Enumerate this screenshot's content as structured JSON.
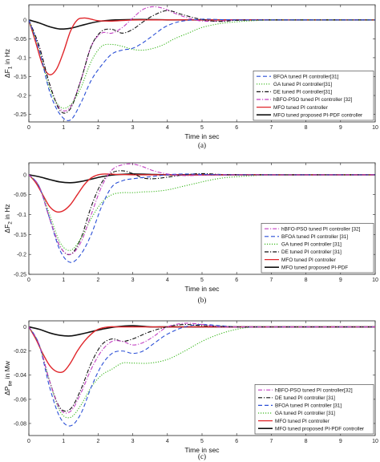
{
  "chart_data": [
    {
      "type": "line",
      "caption": "(a)",
      "xlabel": "Time in sec",
      "ylabel": "ΔF",
      "ylabel_sub": "1",
      "ylabel_suffix": " in Hz",
      "xlim": [
        0,
        10
      ],
      "ylim": [
        -0.27,
        0.04
      ],
      "xticks": [
        "0",
        "1",
        "2",
        "3",
        "4",
        "5",
        "6",
        "7",
        "8",
        "9",
        "10"
      ],
      "xtick_values": [
        0,
        1,
        2,
        3,
        4,
        5,
        6,
        7,
        8,
        9,
        10
      ],
      "yticks": [
        "0",
        "-0.05",
        "-0.1",
        "-0.15",
        "-0.2",
        "-0.25"
      ],
      "ytick_values": [
        0,
        -0.05,
        -0.1,
        -0.15,
        -0.2,
        -0.25
      ],
      "grid": false,
      "legend_position": "bottom-right",
      "series": [
        {
          "name": "BFOA tuned PI controller[31]",
          "color": "#2a4fd6",
          "dash": "dash",
          "x": [
            0,
            0.3,
            0.6,
            0.9,
            1.2,
            1.5,
            1.8,
            2.1,
            2.4,
            2.7,
            3.0,
            3.3,
            3.6,
            3.9,
            4.2,
            4.5,
            5,
            5.5,
            6,
            7,
            8,
            10
          ],
          "y": [
            0,
            -0.08,
            -0.19,
            -0.25,
            -0.265,
            -0.22,
            -0.16,
            -0.12,
            -0.09,
            -0.08,
            -0.075,
            -0.06,
            -0.04,
            -0.02,
            -0.008,
            -0.002,
            0.002,
            0.001,
            0,
            0,
            0,
            0
          ]
        },
        {
          "name": "GA tuned PI controller[31]",
          "color": "#3cb820",
          "dash": "dot",
          "x": [
            0,
            0.3,
            0.6,
            0.9,
            1.2,
            1.5,
            1.8,
            2.1,
            2.4,
            2.7,
            3.0,
            3.3,
            3.6,
            3.9,
            4.2,
            4.6,
            5.0,
            5.5,
            6,
            6.5,
            7,
            8,
            10
          ],
          "y": [
            0,
            -0.08,
            -0.18,
            -0.23,
            -0.225,
            -0.18,
            -0.11,
            -0.07,
            -0.065,
            -0.07,
            -0.078,
            -0.08,
            -0.075,
            -0.065,
            -0.05,
            -0.035,
            -0.02,
            -0.01,
            -0.005,
            -0.002,
            0,
            0,
            0
          ]
        },
        {
          "name": "DE tuned PI controller[31]",
          "color": "#111111",
          "dash": "dashdot",
          "x": [
            0,
            0.3,
            0.6,
            0.9,
            1.2,
            1.5,
            1.8,
            2.1,
            2.4,
            2.7,
            3.0,
            3.3,
            3.6,
            4.0,
            4.4,
            4.8,
            5.2,
            5.6,
            6,
            7,
            8,
            10
          ],
          "y": [
            0,
            -0.07,
            -0.17,
            -0.24,
            -0.235,
            -0.16,
            -0.07,
            -0.03,
            -0.025,
            -0.035,
            -0.025,
            -0.005,
            0.012,
            0.025,
            0.015,
            0.005,
            -0.002,
            -0.004,
            -0.001,
            0,
            0,
            0
          ]
        },
        {
          "name": "hBFO-PSO tuned PI controller [32]",
          "color": "#c23fc2",
          "dash": "dashdot",
          "x": [
            0,
            0.3,
            0.6,
            0.9,
            1.2,
            1.5,
            1.8,
            2.1,
            2.4,
            2.7,
            3.0,
            3.3,
            3.6,
            3.9,
            4.2,
            4.6,
            5.0,
            5.5,
            6,
            7,
            8,
            10
          ],
          "y": [
            0,
            -0.07,
            -0.17,
            -0.235,
            -0.23,
            -0.16,
            -0.07,
            -0.035,
            -0.035,
            -0.02,
            0.005,
            0.028,
            0.035,
            0.03,
            0.018,
            0.005,
            -0.003,
            -0.003,
            0,
            0,
            0,
            0
          ]
        },
        {
          "name": "MFO tuned PI controller",
          "color": "#e0262b",
          "dash": "solid",
          "x": [
            0,
            0.2,
            0.4,
            0.6,
            0.8,
            1.0,
            1.2,
            1.4,
            1.6,
            1.8,
            2.0,
            2.4,
            2.8,
            3.2,
            3.6,
            4,
            5,
            10
          ],
          "y": [
            0,
            -0.06,
            -0.12,
            -0.145,
            -0.13,
            -0.085,
            -0.03,
            0,
            0.005,
            0.002,
            -0.002,
            -0.003,
            -0.001,
            0,
            0,
            0,
            0,
            0
          ]
        },
        {
          "name": "MFO tuned proposed PI-PDF controller",
          "color": "#111111",
          "dash": "solid",
          "x": [
            0,
            0.3,
            0.6,
            0.9,
            1.2,
            1.5,
            1.8,
            2.1,
            2.5,
            3.0,
            3.5,
            4,
            5,
            10
          ],
          "y": [
            0,
            -0.008,
            -0.018,
            -0.024,
            -0.022,
            -0.015,
            -0.008,
            -0.003,
            0,
            0.001,
            0.001,
            0,
            0,
            0
          ]
        }
      ]
    },
    {
      "type": "line",
      "caption": "(b)",
      "xlabel": "Time in sec",
      "ylabel": "ΔF",
      "ylabel_sub": "2",
      "ylabel_suffix": " in Hz",
      "xlim": [
        0,
        10
      ],
      "ylim": [
        -0.25,
        0.03
      ],
      "xticks": [
        "0",
        "1",
        "2",
        "3",
        "4",
        "5",
        "6",
        "7",
        "8",
        "9",
        "10"
      ],
      "xtick_values": [
        0,
        1,
        2,
        3,
        4,
        5,
        6,
        7,
        8,
        9,
        10
      ],
      "yticks": [
        "0",
        "-0.05",
        "-0.1",
        "-0.15",
        "-0.2",
        "-0.25"
      ],
      "ytick_values": [
        0,
        -0.05,
        -0.1,
        -0.15,
        -0.2,
        -0.25
      ],
      "grid": false,
      "legend_position": "bottom-right",
      "series": [
        {
          "name": "hBFO-PSO tuned PI controller [32]",
          "color": "#c23fc2",
          "dash": "dashdot",
          "x": [
            0,
            0.3,
            0.6,
            0.9,
            1.2,
            1.5,
            1.8,
            2.1,
            2.4,
            2.7,
            3.0,
            3.3,
            3.6,
            4.0,
            4.5,
            5,
            5.5,
            6,
            7,
            8,
            10
          ],
          "y": [
            0,
            -0.03,
            -0.11,
            -0.18,
            -0.2,
            -0.17,
            -0.1,
            -0.03,
            0.012,
            0.025,
            0.027,
            0.02,
            0.01,
            0.002,
            -0.002,
            -0.001,
            0,
            0,
            0,
            0,
            0
          ]
        },
        {
          "name": "BFOA tuned PI controller [31]",
          "color": "#2a4fd6",
          "dash": "dash",
          "x": [
            0,
            0.3,
            0.6,
            0.9,
            1.2,
            1.5,
            1.8,
            2.1,
            2.4,
            2.7,
            3.0,
            3.5,
            4,
            4.5,
            5,
            6,
            7,
            10
          ],
          "y": [
            0,
            -0.03,
            -0.11,
            -0.19,
            -0.22,
            -0.2,
            -0.15,
            -0.08,
            -0.03,
            -0.015,
            -0.01,
            -0.005,
            0,
            0.002,
            0.001,
            0,
            0,
            0
          ]
        },
        {
          "name": "GA tuned PI controller [31]",
          "color": "#3cb820",
          "dash": "dot",
          "x": [
            0,
            0.3,
            0.6,
            0.9,
            1.2,
            1.5,
            1.8,
            2.1,
            2.4,
            2.7,
            3.0,
            3.3,
            3.6,
            4.0,
            4.4,
            4.8,
            5.2,
            5.6,
            6,
            6.5,
            7,
            8,
            10
          ],
          "y": [
            0,
            -0.03,
            -0.1,
            -0.17,
            -0.19,
            -0.16,
            -0.11,
            -0.07,
            -0.05,
            -0.045,
            -0.045,
            -0.043,
            -0.042,
            -0.038,
            -0.03,
            -0.022,
            -0.014,
            -0.008,
            -0.005,
            -0.002,
            0,
            0,
            0
          ]
        },
        {
          "name": "DE tuned PI controller [31]",
          "color": "#111111",
          "dash": "dashdot",
          "x": [
            0,
            0.3,
            0.6,
            0.9,
            1.2,
            1.5,
            1.8,
            2.1,
            2.4,
            2.7,
            3.0,
            3.3,
            3.6,
            4,
            4.5,
            5,
            5.5,
            6,
            7,
            8,
            10
          ],
          "y": [
            0,
            -0.03,
            -0.11,
            -0.18,
            -0.2,
            -0.16,
            -0.08,
            -0.02,
            0.005,
            0.01,
            0.003,
            -0.008,
            -0.01,
            -0.006,
            0,
            0.003,
            0.001,
            0,
            0,
            0,
            0
          ]
        },
        {
          "name": "MFO tuned PI controller",
          "color": "#e0262b",
          "dash": "solid",
          "x": [
            0,
            0.2,
            0.4,
            0.6,
            0.8,
            1.0,
            1.2,
            1.4,
            1.6,
            1.8,
            2.0,
            2.2,
            2.5,
            3.0,
            3.5,
            4,
            5,
            10
          ],
          "y": [
            0,
            -0.02,
            -0.05,
            -0.08,
            -0.093,
            -0.09,
            -0.075,
            -0.05,
            -0.025,
            -0.008,
            0,
            0.002,
            0.001,
            0,
            0,
            0,
            0,
            0
          ]
        },
        {
          "name": "MFO tuned proposed PI-PDF",
          "color": "#111111",
          "dash": "solid",
          "x": [
            0,
            0.3,
            0.6,
            0.9,
            1.2,
            1.5,
            1.8,
            2.1,
            2.5,
            3.0,
            3.5,
            4,
            5,
            10
          ],
          "y": [
            0,
            -0.005,
            -0.012,
            -0.018,
            -0.02,
            -0.017,
            -0.011,
            -0.005,
            0,
            0.002,
            0.001,
            0,
            0,
            0
          ]
        }
      ]
    },
    {
      "type": "line",
      "caption": "(c)",
      "xlabel": "Time in sec",
      "ylabel": "ΔP",
      "ylabel_sub": "tie",
      "ylabel_suffix": " in Mw",
      "xlim": [
        0,
        10
      ],
      "ylim": [
        -0.09,
        0.005
      ],
      "xticks": [
        "0",
        "1",
        "2",
        "3",
        "4",
        "5",
        "6",
        "7",
        "8",
        "9",
        "10"
      ],
      "xtick_values": [
        0,
        1,
        2,
        3,
        4,
        5,
        6,
        7,
        8,
        9,
        10
      ],
      "yticks": [
        "0",
        "-0.02",
        "-0.04",
        "-0.06",
        "-0.08"
      ],
      "ytick_values": [
        0,
        -0.02,
        -0.04,
        -0.06,
        -0.08
      ],
      "grid": false,
      "legend_position": "bottom-right",
      "series": [
        {
          "name": "hBFO-PSO tuned PI controller[32]",
          "color": "#c23fc2",
          "dash": "dashdot",
          "x": [
            0,
            0.3,
            0.6,
            0.9,
            1.2,
            1.5,
            1.8,
            2.1,
            2.4,
            2.7,
            3.0,
            3.3,
            3.6,
            4.0,
            4.5,
            5,
            5.5,
            6,
            7,
            8,
            10
          ],
          "y": [
            0,
            -0.015,
            -0.045,
            -0.068,
            -0.07,
            -0.055,
            -0.035,
            -0.02,
            -0.012,
            -0.012,
            -0.015,
            -0.013,
            -0.008,
            0,
            0.003,
            0.002,
            0,
            0,
            0,
            0,
            0
          ]
        },
        {
          "name": "DE tuned PI controller [31]",
          "color": "#111111",
          "dash": "dashdot",
          "x": [
            0,
            0.3,
            0.6,
            0.9,
            1.2,
            1.5,
            1.8,
            2.1,
            2.4,
            2.7,
            3.0,
            3.5,
            4,
            4.5,
            5,
            6,
            7,
            10
          ],
          "y": [
            0,
            -0.015,
            -0.045,
            -0.067,
            -0.068,
            -0.052,
            -0.03,
            -0.015,
            -0.01,
            -0.012,
            -0.01,
            -0.004,
            0,
            0.002,
            0.001,
            0,
            0,
            0
          ]
        },
        {
          "name": "BFOA tuned PI controller [31]",
          "color": "#2a4fd6",
          "dash": "dash",
          "x": [
            0,
            0.3,
            0.6,
            0.9,
            1.2,
            1.5,
            1.8,
            2.1,
            2.4,
            2.7,
            3.0,
            3.3,
            3.6,
            4.0,
            4.5,
            5,
            5.5,
            6,
            7,
            8,
            10
          ],
          "y": [
            0,
            -0.015,
            -0.05,
            -0.075,
            -0.082,
            -0.072,
            -0.05,
            -0.032,
            -0.022,
            -0.02,
            -0.022,
            -0.02,
            -0.014,
            -0.006,
            0,
            0.002,
            0.001,
            0,
            0,
            0,
            0
          ]
        },
        {
          "name": "GA tuned PI controller [31]",
          "color": "#3cb820",
          "dash": "dot",
          "x": [
            0,
            0.3,
            0.6,
            0.9,
            1.2,
            1.5,
            1.8,
            2.1,
            2.4,
            2.7,
            3.0,
            3.5,
            4.0,
            4.5,
            5.0,
            5.5,
            6,
            6.5,
            7,
            8,
            10
          ],
          "y": [
            0,
            -0.015,
            -0.045,
            -0.07,
            -0.075,
            -0.065,
            -0.05,
            -0.04,
            -0.035,
            -0.03,
            -0.03,
            -0.03,
            -0.027,
            -0.02,
            -0.012,
            -0.006,
            -0.002,
            0,
            0,
            0,
            0
          ]
        },
        {
          "name": "MFO tuned PI controller",
          "color": "#e0262b",
          "dash": "solid",
          "x": [
            0,
            0.2,
            0.4,
            0.6,
            0.8,
            1.0,
            1.2,
            1.4,
            1.6,
            1.8,
            2.0,
            2.3,
            2.6,
            3.0,
            3.5,
            4,
            5,
            10
          ],
          "y": [
            0,
            -0.01,
            -0.022,
            -0.032,
            -0.037,
            -0.037,
            -0.03,
            -0.02,
            -0.012,
            -0.006,
            -0.002,
            0,
            0,
            0,
            0,
            0,
            0,
            0
          ]
        },
        {
          "name": "MFO tuned proposed PI-PDF controller",
          "color": "#111111",
          "dash": "solid",
          "x": [
            0,
            0.3,
            0.6,
            0.9,
            1.2,
            1.5,
            1.8,
            2.1,
            2.5,
            3.0,
            3.5,
            4,
            5,
            10
          ],
          "y": [
            0,
            -0.002,
            -0.005,
            -0.007,
            -0.0075,
            -0.006,
            -0.004,
            -0.002,
            0,
            0.001,
            0,
            0,
            0,
            0
          ]
        }
      ]
    }
  ]
}
